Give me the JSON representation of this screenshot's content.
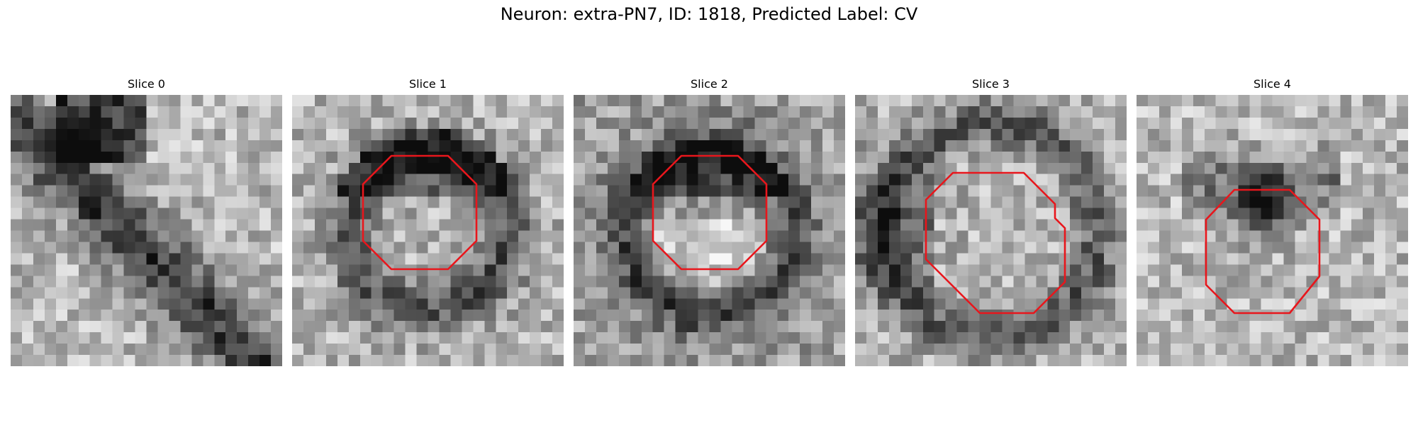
{
  "figure": {
    "title": "Neuron: extra-PN7, ID: 1818, Predicted Label: CV"
  },
  "panels": [
    {
      "title": "Slice 0",
      "has_contour": false,
      "pattern": "diagonal-band"
    },
    {
      "title": "Slice 1",
      "has_contour": true,
      "pattern": "ring"
    },
    {
      "title": "Slice 2",
      "has_contour": true,
      "pattern": "ring-light"
    },
    {
      "title": "Slice 3",
      "has_contour": true,
      "pattern": "arc"
    },
    {
      "title": "Slice 4",
      "has_contour": true,
      "pattern": "blob"
    }
  ],
  "style": {
    "contour_color": "#e8161c",
    "colormap": "gray"
  }
}
